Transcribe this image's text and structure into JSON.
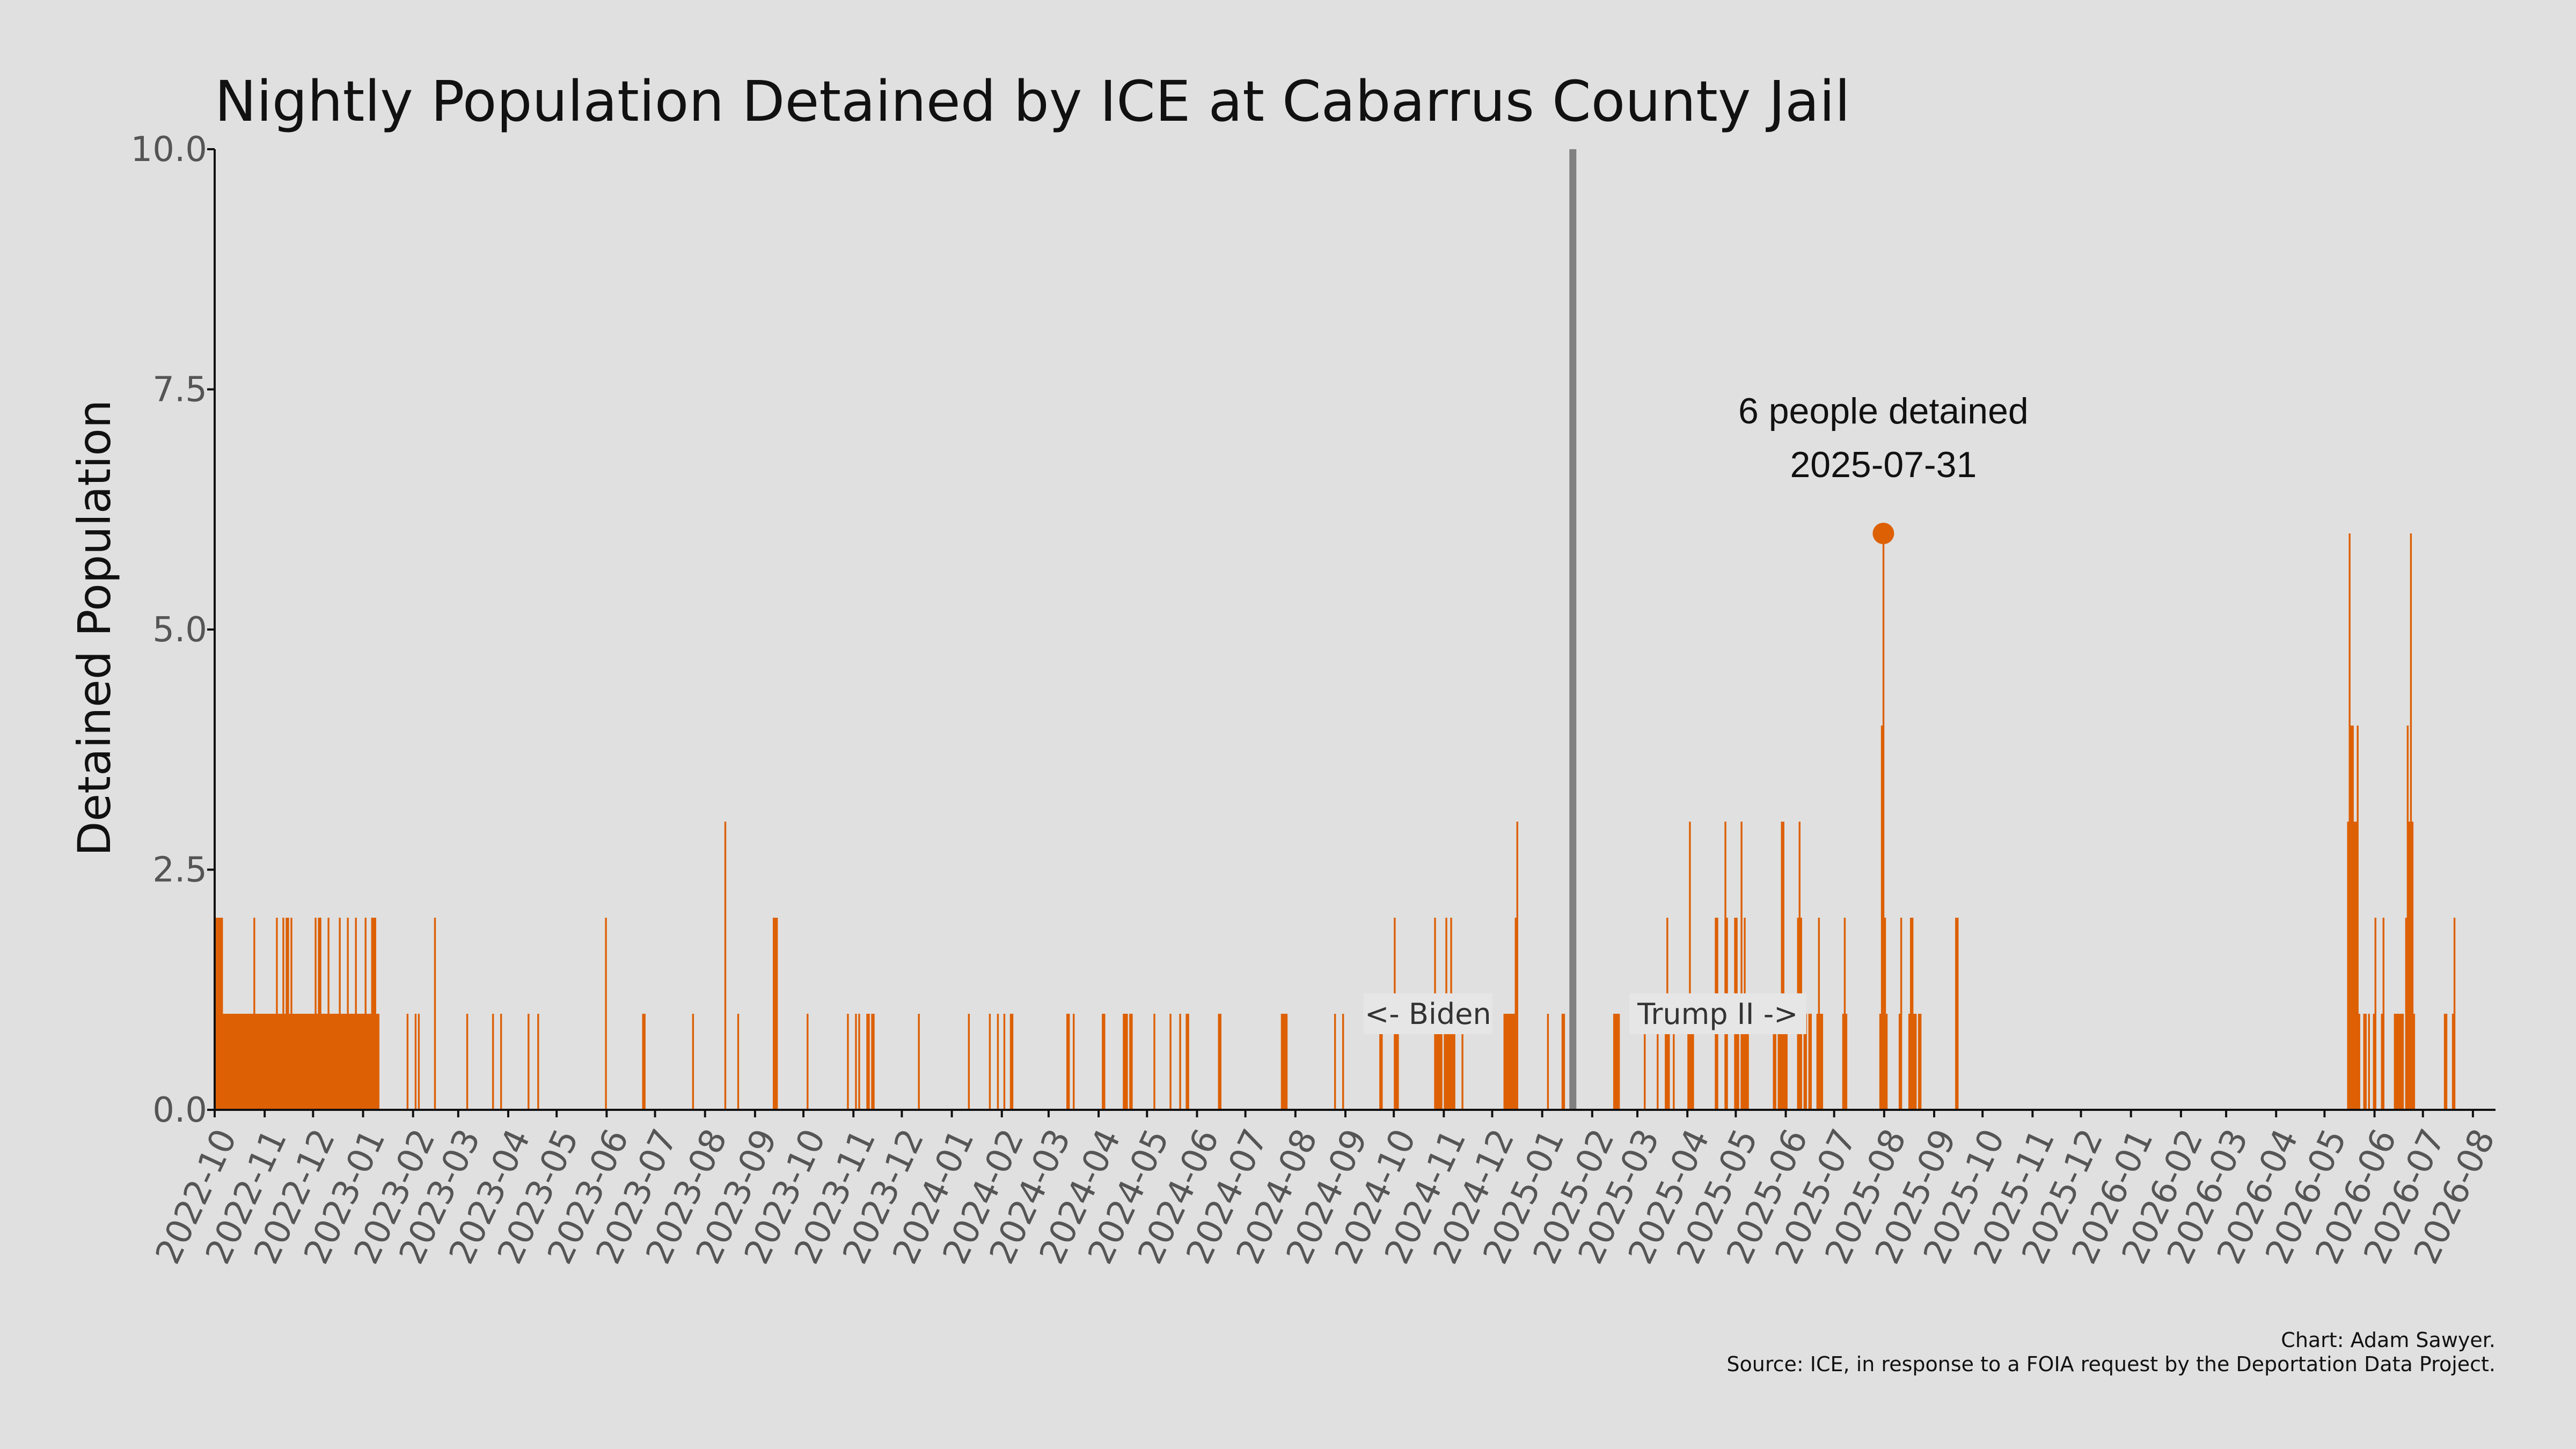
{
  "chart_data": {
    "type": "bar",
    "title": "Nightly Population Detained by ICE at Cabarrus County Jail",
    "ylabel": "Detained Population",
    "xlabel": "",
    "ylim": [
      0,
      10
    ],
    "yticks": [
      "0.0",
      "2.5",
      "5.0",
      "7.5",
      "10.0"
    ],
    "xlim": [
      "2022-10-01",
      "2026-08-15"
    ],
    "xticks": [
      "2022-10",
      "2022-11",
      "2022-12",
      "2023-01",
      "2023-02",
      "2023-03",
      "2023-04",
      "2023-05",
      "2023-06",
      "2023-07",
      "2023-08",
      "2023-09",
      "2023-10",
      "2023-11",
      "2023-12",
      "2024-01",
      "2024-02",
      "2024-03",
      "2024-04",
      "2024-05",
      "2024-06",
      "2024-07",
      "2024-08",
      "2024-09",
      "2024-10",
      "2024-11",
      "2024-12",
      "2025-01",
      "2025-02",
      "2025-03",
      "2025-04",
      "2025-05",
      "2025-06",
      "2025-07",
      "2025-08",
      "2025-09",
      "2025-10",
      "2025-11",
      "2025-12",
      "2026-01",
      "2026-02",
      "2026-03",
      "2026-04",
      "2026-05",
      "2026-06",
      "2026-07",
      "2026-08"
    ],
    "grid": false,
    "bar_color": "#dd6005",
    "divider_color": "#808080",
    "points": [
      [
        "2022-10-01",
        2
      ],
      [
        "2022-10-02",
        2
      ],
      [
        "2022-10-03",
        2
      ],
      [
        "2022-10-04",
        2
      ],
      [
        "2022-10-05",
        2
      ],
      [
        "2022-10-06",
        1
      ],
      [
        "2022-10-07",
        1
      ],
      [
        "2022-10-08",
        1
      ],
      [
        "2022-10-09",
        1
      ],
      [
        "2022-10-10",
        1
      ],
      [
        "2022-10-11",
        1
      ],
      [
        "2022-10-12",
        1
      ],
      [
        "2022-10-13",
        1
      ],
      [
        "2022-10-14",
        1
      ],
      [
        "2022-10-15",
        1
      ],
      [
        "2022-10-16",
        1
      ],
      [
        "2022-10-17",
        1
      ],
      [
        "2022-10-18",
        1
      ],
      [
        "2022-10-19",
        1
      ],
      [
        "2022-10-20",
        1
      ],
      [
        "2022-10-21",
        1
      ],
      [
        "2022-10-22",
        1
      ],
      [
        "2022-10-23",
        1
      ],
      [
        "2022-10-24",
        1
      ],
      [
        "2022-10-25",
        2
      ],
      [
        "2022-10-26",
        1
      ],
      [
        "2022-10-27",
        1
      ],
      [
        "2022-10-28",
        1
      ],
      [
        "2022-10-29",
        1
      ],
      [
        "2022-10-30",
        1
      ],
      [
        "2022-10-31",
        1
      ],
      [
        "2022-11-01",
        1
      ],
      [
        "2022-11-02",
        1
      ],
      [
        "2022-11-03",
        1
      ],
      [
        "2022-11-04",
        1
      ],
      [
        "2022-11-05",
        1
      ],
      [
        "2022-11-06",
        1
      ],
      [
        "2022-11-07",
        1
      ],
      [
        "2022-11-08",
        2
      ],
      [
        "2022-11-09",
        1
      ],
      [
        "2022-11-10",
        1
      ],
      [
        "2022-11-11",
        1
      ],
      [
        "2022-11-12",
        2
      ],
      [
        "2022-11-13",
        1
      ],
      [
        "2022-11-14",
        2
      ],
      [
        "2022-11-15",
        2
      ],
      [
        "2022-11-16",
        1
      ],
      [
        "2022-11-17",
        2
      ],
      [
        "2022-11-18",
        1
      ],
      [
        "2022-11-19",
        1
      ],
      [
        "2022-11-20",
        1
      ],
      [
        "2022-11-21",
        1
      ],
      [
        "2022-11-22",
        1
      ],
      [
        "2022-11-23",
        1
      ],
      [
        "2022-11-24",
        1
      ],
      [
        "2022-11-25",
        1
      ],
      [
        "2022-11-26",
        1
      ],
      [
        "2022-11-27",
        1
      ],
      [
        "2022-11-28",
        1
      ],
      [
        "2022-11-29",
        1
      ],
      [
        "2022-11-30",
        1
      ],
      [
        "2022-12-01",
        1
      ],
      [
        "2022-12-02",
        2
      ],
      [
        "2022-12-03",
        1
      ],
      [
        "2022-12-04",
        2
      ],
      [
        "2022-12-05",
        2
      ],
      [
        "2022-12-06",
        1
      ],
      [
        "2022-12-07",
        1
      ],
      [
        "2022-12-08",
        1
      ],
      [
        "2022-12-09",
        1
      ],
      [
        "2022-12-10",
        2
      ],
      [
        "2022-12-11",
        1
      ],
      [
        "2022-12-12",
        1
      ],
      [
        "2022-12-13",
        1
      ],
      [
        "2022-12-14",
        1
      ],
      [
        "2022-12-15",
        1
      ],
      [
        "2022-12-16",
        1
      ],
      [
        "2022-12-17",
        2
      ],
      [
        "2022-12-18",
        1
      ],
      [
        "2022-12-19",
        1
      ],
      [
        "2022-12-20",
        1
      ],
      [
        "2022-12-21",
        1
      ],
      [
        "2022-12-22",
        2
      ],
      [
        "2022-12-23",
        1
      ],
      [
        "2022-12-24",
        1
      ],
      [
        "2022-12-25",
        1
      ],
      [
        "2022-12-26",
        1
      ],
      [
        "2022-12-27",
        2
      ],
      [
        "2022-12-28",
        1
      ],
      [
        "2022-12-29",
        1
      ],
      [
        "2022-12-30",
        1
      ],
      [
        "2022-12-31",
        1
      ],
      [
        "2023-01-01",
        1
      ],
      [
        "2023-01-02",
        2
      ],
      [
        "2023-01-03",
        1
      ],
      [
        "2023-01-04",
        1
      ],
      [
        "2023-01-05",
        1
      ],
      [
        "2023-01-06",
        2
      ],
      [
        "2023-01-07",
        2
      ],
      [
        "2023-01-08",
        2
      ],
      [
        "2023-01-09",
        1
      ],
      [
        "2023-01-10",
        1
      ],
      [
        "2023-01-28",
        1
      ],
      [
        "2023-02-02",
        1
      ],
      [
        "2023-02-04",
        1
      ],
      [
        "2023-02-14",
        2
      ],
      [
        "2023-03-06",
        1
      ],
      [
        "2023-03-22",
        1
      ],
      [
        "2023-03-27",
        1
      ],
      [
        "2023-04-13",
        1
      ],
      [
        "2023-04-19",
        1
      ],
      [
        "2023-05-31",
        2
      ],
      [
        "2023-06-23",
        1
      ],
      [
        "2023-06-24",
        1
      ],
      [
        "2023-07-24",
        1
      ],
      [
        "2023-08-13",
        3
      ],
      [
        "2023-08-21",
        1
      ],
      [
        "2023-09-12",
        2
      ],
      [
        "2023-09-13",
        2
      ],
      [
        "2023-09-14",
        2
      ],
      [
        "2023-10-03",
        1
      ],
      [
        "2023-10-28",
        1
      ],
      [
        "2023-11-02",
        1
      ],
      [
        "2023-11-04",
        1
      ],
      [
        "2023-11-09",
        1
      ],
      [
        "2023-11-10",
        1
      ],
      [
        "2023-11-12",
        1
      ],
      [
        "2023-11-13",
        1
      ],
      [
        "2023-12-11",
        1
      ],
      [
        "2024-01-11",
        1
      ],
      [
        "2024-01-24",
        1
      ],
      [
        "2024-01-29",
        1
      ],
      [
        "2024-02-02",
        1
      ],
      [
        "2024-02-06",
        1
      ],
      [
        "2024-02-07",
        1
      ],
      [
        "2024-03-12",
        1
      ],
      [
        "2024-03-13",
        1
      ],
      [
        "2024-03-16",
        1
      ],
      [
        "2024-04-03",
        1
      ],
      [
        "2024-04-04",
        1
      ],
      [
        "2024-04-16",
        1
      ],
      [
        "2024-04-17",
        1
      ],
      [
        "2024-04-18",
        1
      ],
      [
        "2024-04-20",
        1
      ],
      [
        "2024-04-21",
        1
      ],
      [
        "2024-05-05",
        1
      ],
      [
        "2024-05-15",
        1
      ],
      [
        "2024-05-21",
        1
      ],
      [
        "2024-05-25",
        1
      ],
      [
        "2024-05-26",
        1
      ],
      [
        "2024-06-14",
        1
      ],
      [
        "2024-06-15",
        1
      ],
      [
        "2024-07-23",
        1
      ],
      [
        "2024-07-24",
        1
      ],
      [
        "2024-07-25",
        1
      ],
      [
        "2024-07-26",
        1
      ],
      [
        "2024-08-25",
        1
      ],
      [
        "2024-08-30",
        1
      ],
      [
        "2024-09-22",
        1
      ],
      [
        "2024-09-23",
        1
      ],
      [
        "2024-10-01",
        2
      ],
      [
        "2024-10-02",
        1
      ],
      [
        "2024-10-03",
        1
      ],
      [
        "2024-10-26",
        2
      ],
      [
        "2024-10-27",
        1
      ],
      [
        "2024-10-28",
        1
      ],
      [
        "2024-10-29",
        1
      ],
      [
        "2024-10-30",
        1
      ],
      [
        "2024-11-01",
        1
      ],
      [
        "2024-11-02",
        2
      ],
      [
        "2024-11-03",
        1
      ],
      [
        "2024-11-04",
        1
      ],
      [
        "2024-11-05",
        2
      ],
      [
        "2024-11-06",
        1
      ],
      [
        "2024-11-07",
        1
      ],
      [
        "2024-11-12",
        1
      ],
      [
        "2024-12-08",
        1
      ],
      [
        "2024-12-09",
        1
      ],
      [
        "2024-12-10",
        1
      ],
      [
        "2024-12-11",
        1
      ],
      [
        "2024-12-12",
        1
      ],
      [
        "2024-12-13",
        1
      ],
      [
        "2024-12-14",
        1
      ],
      [
        "2024-12-15",
        2
      ],
      [
        "2024-12-16",
        3
      ],
      [
        "2025-01-04",
        1
      ],
      [
        "2025-01-13",
        1
      ],
      [
        "2025-01-14",
        1
      ],
      [
        "2025-02-14",
        1
      ],
      [
        "2025-02-15",
        1
      ],
      [
        "2025-02-16",
        1
      ],
      [
        "2025-02-17",
        1
      ],
      [
        "2025-03-05",
        1
      ],
      [
        "2025-03-13",
        1
      ],
      [
        "2025-03-18",
        1
      ],
      [
        "2025-03-19",
        2
      ],
      [
        "2025-03-20",
        1
      ],
      [
        "2025-03-23",
        1
      ],
      [
        "2025-04-01",
        1
      ],
      [
        "2025-04-02",
        3
      ],
      [
        "2025-04-03",
        1
      ],
      [
        "2025-04-04",
        1
      ],
      [
        "2025-04-18",
        2
      ],
      [
        "2025-04-19",
        2
      ],
      [
        "2025-04-24",
        3
      ],
      [
        "2025-04-25",
        2
      ],
      [
        "2025-04-30",
        2
      ],
      [
        "2025-05-01",
        2
      ],
      [
        "2025-05-02",
        1
      ],
      [
        "2025-05-04",
        3
      ],
      [
        "2025-05-05",
        1
      ],
      [
        "2025-05-06",
        2
      ],
      [
        "2025-05-07",
        1
      ],
      [
        "2025-05-08",
        1
      ],
      [
        "2025-05-24",
        1
      ],
      [
        "2025-05-25",
        1
      ],
      [
        "2025-05-27",
        1
      ],
      [
        "2025-05-28",
        1
      ],
      [
        "2025-05-29",
        3
      ],
      [
        "2025-05-30",
        3
      ],
      [
        "2025-05-31",
        1
      ],
      [
        "2025-06-01",
        1
      ],
      [
        "2025-06-08",
        2
      ],
      [
        "2025-06-09",
        3
      ],
      [
        "2025-06-10",
        2
      ],
      [
        "2025-06-12",
        1
      ],
      [
        "2025-06-13",
        1
      ],
      [
        "2025-06-15",
        1
      ],
      [
        "2025-06-16",
        1
      ],
      [
        "2025-06-20",
        1
      ],
      [
        "2025-06-21",
        2
      ],
      [
        "2025-06-22",
        1
      ],
      [
        "2025-06-23",
        1
      ],
      [
        "2025-07-06",
        1
      ],
      [
        "2025-07-07",
        2
      ],
      [
        "2025-07-08",
        1
      ],
      [
        "2025-07-29",
        1
      ],
      [
        "2025-07-30",
        4
      ],
      [
        "2025-07-31",
        6
      ],
      [
        "2025-08-01",
        2
      ],
      [
        "2025-08-02",
        1
      ],
      [
        "2025-08-10",
        1
      ],
      [
        "2025-08-11",
        2
      ],
      [
        "2025-08-16",
        1
      ],
      [
        "2025-08-17",
        2
      ],
      [
        "2025-08-18",
        2
      ],
      [
        "2025-08-19",
        1
      ],
      [
        "2025-08-20",
        1
      ],
      [
        "2025-08-22",
        1
      ],
      [
        "2025-08-23",
        1
      ],
      [
        "2025-09-14",
        2
      ],
      [
        "2025-09-15",
        2
      ],
      [
        "2026-05-15",
        3
      ],
      [
        "2026-05-16",
        6
      ],
      [
        "2026-05-17",
        4
      ],
      [
        "2026-05-18",
        4
      ],
      [
        "2026-05-19",
        3
      ],
      [
        "2026-05-20",
        3
      ],
      [
        "2026-05-21",
        4
      ],
      [
        "2026-05-22",
        1
      ],
      [
        "2026-05-25",
        1
      ],
      [
        "2026-05-26",
        1
      ],
      [
        "2026-05-28",
        1
      ],
      [
        "2026-05-31",
        1
      ],
      [
        "2026-06-01",
        2
      ],
      [
        "2026-06-05",
        1
      ],
      [
        "2026-06-06",
        2
      ],
      [
        "2026-06-13",
        1
      ],
      [
        "2026-06-14",
        1
      ],
      [
        "2026-06-15",
        1
      ],
      [
        "2026-06-16",
        1
      ],
      [
        "2026-06-17",
        1
      ],
      [
        "2026-06-18",
        1
      ],
      [
        "2026-06-20",
        2
      ],
      [
        "2026-06-21",
        4
      ],
      [
        "2026-06-22",
        3
      ],
      [
        "2026-06-23",
        6
      ],
      [
        "2026-06-24",
        3
      ],
      [
        "2026-06-25",
        1
      ],
      [
        "2026-07-14",
        1
      ],
      [
        "2026-07-15",
        1
      ],
      [
        "2026-07-19",
        1
      ],
      [
        "2026-07-20",
        2
      ]
    ],
    "divider_date": "2025-01-20",
    "highlight": {
      "date": "2025-07-31",
      "value": 6,
      "label_line1": "6 people detained",
      "label_line2": "2025-07-31"
    },
    "annotations": {
      "left_era": "<- Biden",
      "right_era": "Trump II ->"
    },
    "credits": {
      "line1": "Chart: Adam Sawyer.",
      "line2": "Source: ICE, in response to a FOIA request by the Deportation Data Project."
    }
  }
}
